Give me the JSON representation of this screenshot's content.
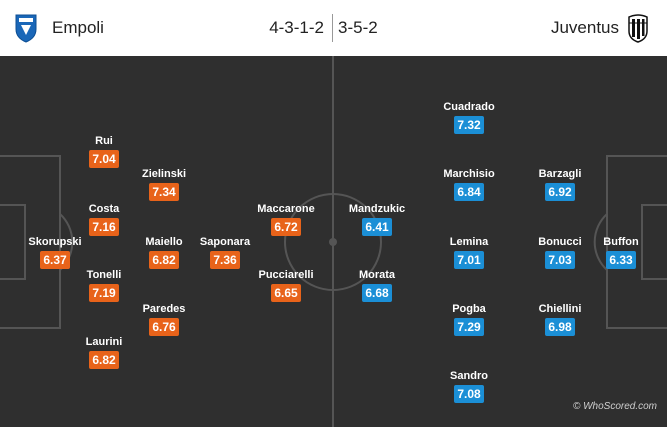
{
  "home": {
    "team": "Empoli",
    "formation": "4-3-1-2",
    "crest_icon": "empoli-crest-icon",
    "color": "#e8631a",
    "players": [
      {
        "name": "Skorupski",
        "rating": "6.37"
      },
      {
        "name": "Rui",
        "rating": "7.04"
      },
      {
        "name": "Costa",
        "rating": "7.16"
      },
      {
        "name": "Tonelli",
        "rating": "7.19"
      },
      {
        "name": "Laurini",
        "rating": "6.82"
      },
      {
        "name": "Zielinski",
        "rating": "7.34"
      },
      {
        "name": "Maiello",
        "rating": "6.82"
      },
      {
        "name": "Paredes",
        "rating": "6.76"
      },
      {
        "name": "Saponara",
        "rating": "7.36"
      },
      {
        "name": "Maccarone",
        "rating": "6.72"
      },
      {
        "name": "Pucciarelli",
        "rating": "6.65"
      }
    ]
  },
  "away": {
    "team": "Juventus",
    "formation": "3-5-2",
    "crest_icon": "juventus-crest-icon",
    "color": "#1b8fd6",
    "players": [
      {
        "name": "Buffon",
        "rating": "6.33"
      },
      {
        "name": "Barzagli",
        "rating": "6.92"
      },
      {
        "name": "Bonucci",
        "rating": "7.03"
      },
      {
        "name": "Chiellini",
        "rating": "6.98"
      },
      {
        "name": "Cuadrado",
        "rating": "7.32"
      },
      {
        "name": "Marchisio",
        "rating": "6.84"
      },
      {
        "name": "Lemina",
        "rating": "7.01"
      },
      {
        "name": "Pogba",
        "rating": "7.29"
      },
      {
        "name": "Sandro",
        "rating": "7.08"
      },
      {
        "name": "Mandzukic",
        "rating": "6.41"
      },
      {
        "name": "Morata",
        "rating": "6.68"
      }
    ]
  },
  "watermark": "© WhoScored.com",
  "colors": {
    "pitch": "#2f2f2f",
    "lines": "#555555"
  }
}
